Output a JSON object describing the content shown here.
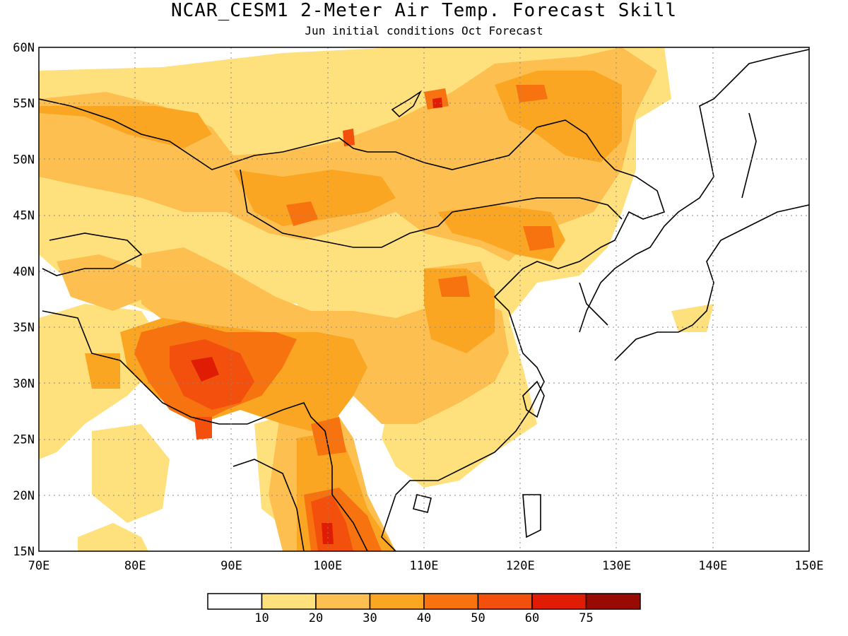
{
  "title": "NCAR_CESM1 2-Meter Air Temp. Forecast Skill",
  "subtitle": "Jun initial conditions  Oct Forecast",
  "axes": {
    "lon_ticks": [
      "70E",
      "80E",
      "90E",
      "100E",
      "110E",
      "120E",
      "130E",
      "140E",
      "150E"
    ],
    "lat_ticks": [
      "15N",
      "20N",
      "25N",
      "30N",
      "35N",
      "40N",
      "45N",
      "50N",
      "55N",
      "60N"
    ],
    "lon_range": [
      70,
      150
    ],
    "lat_range": [
      15,
      60
    ],
    "grid": "dotted"
  },
  "colorbar": {
    "labels": [
      "10",
      "20",
      "30",
      "40",
      "50",
      "60",
      "75"
    ],
    "colors": [
      "#ffffff",
      "#fee07c",
      "#fdc050",
      "#fba622",
      "#f77310",
      "#f2500c",
      "#e01c05",
      "#9a0a04"
    ]
  },
  "colors": {
    "level1": "#fee07c",
    "level2": "#fdc050",
    "level3": "#fba622",
    "level4": "#f77310",
    "level5": "#f2500c",
    "level6": "#e01c05",
    "coastline": "#000000"
  }
}
